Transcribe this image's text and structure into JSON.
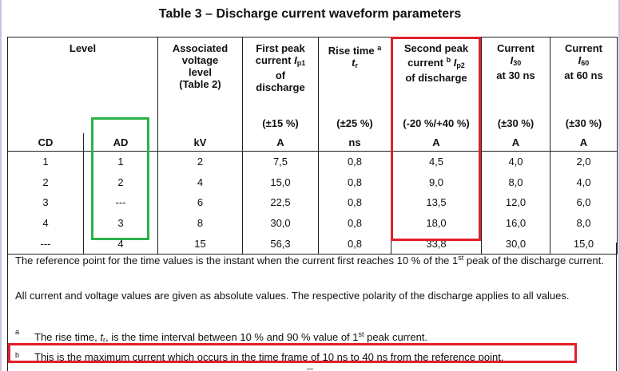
{
  "title": "Table 3 – Discharge current waveform parameters",
  "headers": {
    "level": "Level",
    "voltage": [
      "Associated",
      "voltage",
      "level",
      "(Table 2)"
    ],
    "first_peak": [
      "First peak",
      "current ",
      "of",
      "discharge"
    ],
    "first_peak_symbol": "I",
    "first_peak_sub": "p1",
    "rise_time": [
      "Rise time",
      "t"
    ],
    "rise_time_sup": "a",
    "rise_time_sub": "r",
    "second_peak": [
      "Second peak",
      "current ",
      "of discharge"
    ],
    "second_peak_sup": "b",
    "second_peak_symbol": "I",
    "second_peak_sub": "p2",
    "current30": [
      "Current",
      "I",
      "at 30 ns"
    ],
    "current30_sub": "30",
    "current60": [
      "Current",
      "I",
      "at 60 ns"
    ],
    "current60_sub": "60",
    "tolerances": {
      "first_peak": "(±15 %)",
      "rise_time": "(±25 %)",
      "second_peak": "(-20 %/+40 %)",
      "current30": "(±30 %)",
      "current60": "(±30 %)"
    },
    "units": {
      "cd": "CD",
      "ad": "AD",
      "voltage": "kV",
      "first_peak": "A",
      "rise_time": "ns",
      "second_peak": "A",
      "current30": "A",
      "current60": "A"
    }
  },
  "rows": [
    {
      "cd": "1",
      "ad": "1",
      "kv": "2",
      "ip1": "7,5",
      "tr": "0,8",
      "ip2": "4,5",
      "i30": "4,0",
      "i60": "2,0"
    },
    {
      "cd": "2",
      "ad": "2",
      "kv": "4",
      "ip1": "15,0",
      "tr": "0,8",
      "ip2": "9,0",
      "i30": "8,0",
      "i60": "4,0"
    },
    {
      "cd": "3",
      "ad": "---",
      "kv": "6",
      "ip1": "22,5",
      "tr": "0,8",
      "ip2": "13,5",
      "i30": "12,0",
      "i60": "6,0"
    },
    {
      "cd": "4",
      "ad": "3",
      "kv": "8",
      "ip1": "30,0",
      "tr": "0,8",
      "ip2": "18,0",
      "i30": "16,0",
      "i60": "8,0"
    },
    {
      "cd": "---",
      "ad": "4",
      "kv": "15",
      "ip1": "56,3",
      "tr": "0,8",
      "ip2": "33,8",
      "i30": "30,0",
      "i60": "15,0"
    }
  ],
  "notes": {
    "reference_point_a": "The reference point for the time values is the instant when the current first reaches 10 % of the 1",
    "reference_point_sup": "st",
    "reference_point_b": " peak of the discharge current.",
    "absolute_values": "All current and voltage values are given as absolute values. The respective polarity of the discharge applies to all values.",
    "footnote_a_mark": "a",
    "footnote_a_text_1": "The rise time, ",
    "footnote_a_symbol": "t",
    "footnote_a_sub": "r",
    "footnote_a_text_2": ", is the time interval between 10 % and 90 % value of 1",
    "footnote_a_sup": "st",
    "footnote_a_text_3": " peak current.",
    "footnote_b_mark": "b",
    "footnote_b_text": "This is the maximum current which occurs in the time frame of 10 ns to 40 ns from the reference point."
  },
  "highlight_colors": {
    "green": "#2bb24c",
    "red": "#e0202a"
  }
}
